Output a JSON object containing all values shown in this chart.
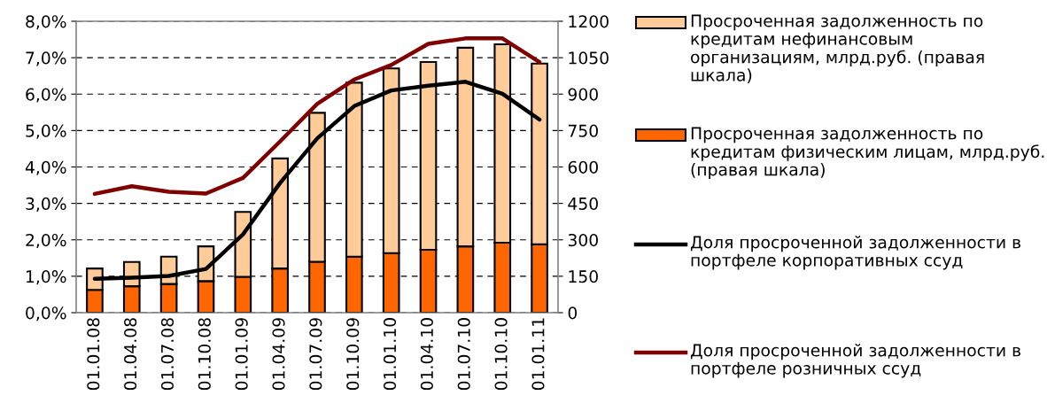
{
  "chart_data": {
    "type": "bar",
    "stacked": true,
    "categories": [
      "01.01.08",
      "01.04.08",
      "01.07.08",
      "01.10.08",
      "01.01.09",
      "01.04.09",
      "01.07.09",
      "01.10.09",
      "01.01.10",
      "01.04.10",
      "01.07.10",
      "01.10.10",
      "01.01.11"
    ],
    "series": [
      {
        "name": "Просроченная задолженность по кредитам физическим лицам, млрд.руб. (правая шкала)",
        "axis": "y2",
        "color": "#ff6600",
        "values": [
          94,
          109,
          118,
          130,
          148,
          182,
          210,
          231,
          245,
          259,
          273,
          288,
          282
        ]
      },
      {
        "name": "Просроченная задолженность по кредитам нефинансовым организациям, млрд.руб. (правая шкала)",
        "axis": "y2",
        "color": "#ffcc99",
        "values": [
          88,
          100,
          113,
          143,
          267,
          453,
          613,
          716,
          761,
          773,
          818,
          817,
          744
        ]
      },
      {
        "name": "Доля просроченной задолженности в портфеле корпоративных ссуд",
        "type": "line",
        "color": "#000000",
        "values": [
          0.93,
          0.96,
          1.01,
          1.2,
          2.15,
          3.56,
          4.78,
          5.67,
          6.1,
          6.23,
          6.34,
          6.01,
          5.3
        ]
      },
      {
        "name": "Доля просроченной задолженности в портфеле розничных ссуд",
        "type": "line",
        "color": "#800000",
        "values": [
          3.26,
          3.47,
          3.32,
          3.27,
          3.7,
          4.7,
          5.73,
          6.4,
          6.8,
          7.38,
          7.53,
          7.53,
          6.88
        ]
      }
    ],
    "ylim": [
      0,
      8
    ],
    "yticks": [
      {
        "value": 0,
        "label": "0,0%"
      },
      {
        "value": 1,
        "label": "1,0%"
      },
      {
        "value": 2,
        "label": "2,0%"
      },
      {
        "value": 3,
        "label": "3,0%"
      },
      {
        "value": 4,
        "label": "4,0%"
      },
      {
        "value": 5,
        "label": "5,0%"
      },
      {
        "value": 6,
        "label": "6,0%"
      },
      {
        "value": 7,
        "label": "7,0%"
      },
      {
        "value": 8,
        "label": "8,0%"
      }
    ],
    "y2lim": [
      0,
      1200
    ],
    "y2ticks": [
      0,
      150,
      300,
      450,
      600,
      750,
      900,
      1050,
      1200
    ],
    "grid": true,
    "legend": "right",
    "marker": "none",
    "line_style": "solid"
  }
}
